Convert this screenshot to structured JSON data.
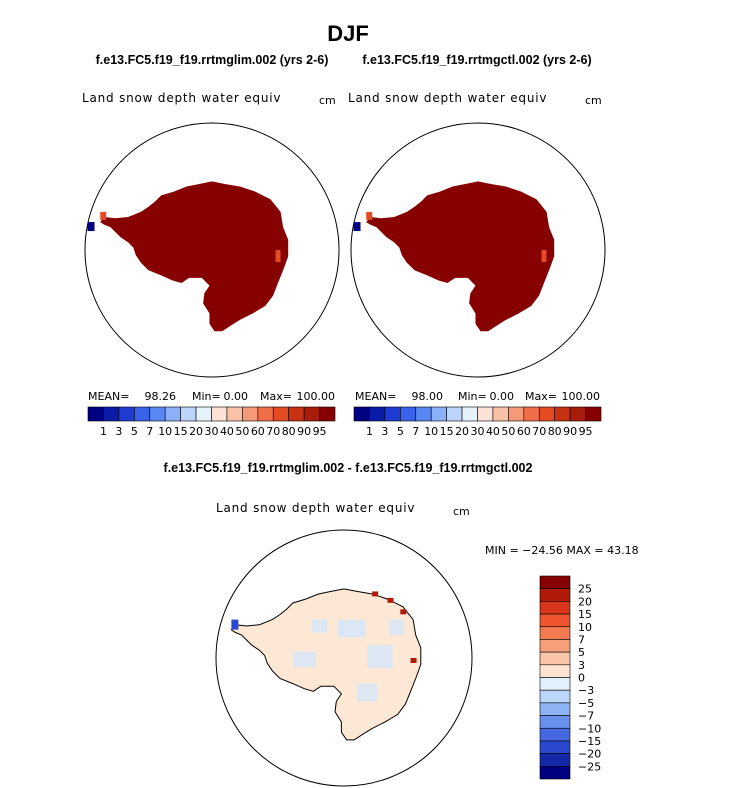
{
  "chart_data": {
    "type": "heatmap",
    "title": "DJF",
    "variable": "Land snow depth water equiv",
    "units": "cm",
    "panels": [
      {
        "id": "test",
        "subtitle": "f.e13.FC5.f19_f19.rrtmglim.002 (yrs 2-6)",
        "stats": {
          "mean_label": "MEAN=",
          "mean": "98.26",
          "min_label": "Min=",
          "min": "0.00",
          "max_label": "Max=",
          "max": "100.00"
        }
      },
      {
        "id": "control",
        "subtitle": "f.e13.FC5.f19_f19.rrtmgctl.002 (yrs 2-6)",
        "stats": {
          "mean_label": "MEAN=",
          "mean": "98.00",
          "min_label": "Min=",
          "min": "0.00",
          "max_label": "Max=",
          "max": "100.00"
        }
      },
      {
        "id": "difference",
        "subtitle": "f.e13.FC5.f19_f19.rrtmglim.002 - f.e13.FC5.f19_f19.rrtmgctl.002",
        "stats_text": "MIN = −24.56  MAX =   43.18"
      }
    ],
    "abs_colorbar": {
      "orientation": "horizontal",
      "levels": [
        "1",
        "3",
        "5",
        "7",
        "10",
        "15",
        "20",
        "30",
        "40",
        "50",
        "60",
        "70",
        "80",
        "90",
        "95"
      ],
      "colors": [
        "#000080",
        "#0a1ca8",
        "#1e3cd2",
        "#3a62ea",
        "#5a86f2",
        "#8ab0f8",
        "#bcd4fb",
        "#e6f2fb",
        "#fce2d6",
        "#f9c1a8",
        "#f59a78",
        "#ef6e48",
        "#e44b22",
        "#c83214",
        "#a81c0a",
        "#860000"
      ]
    },
    "diff_colorbar": {
      "orientation": "vertical",
      "levels": [
        "25",
        "20",
        "15",
        "10",
        "7",
        "5",
        "3",
        "0",
        "−3",
        "−5",
        "−7",
        "−10",
        "−15",
        "−20",
        "−25"
      ],
      "colors": [
        "#860000",
        "#b21a08",
        "#d8361a",
        "#ee5530",
        "#f27a50",
        "#f6a07a",
        "#fac5a8",
        "#fde4d2",
        "#e2f0fb",
        "#bcd6fa",
        "#8fb4f5",
        "#6a90ee",
        "#4669e2",
        "#2a48ce",
        "#1428a8",
        "#000080"
      ]
    },
    "colors": {
      "antarctica_abs": "#860000",
      "antarctica_diff": "#fde8d6",
      "diff_blue": "#d6e6f8"
    }
  }
}
